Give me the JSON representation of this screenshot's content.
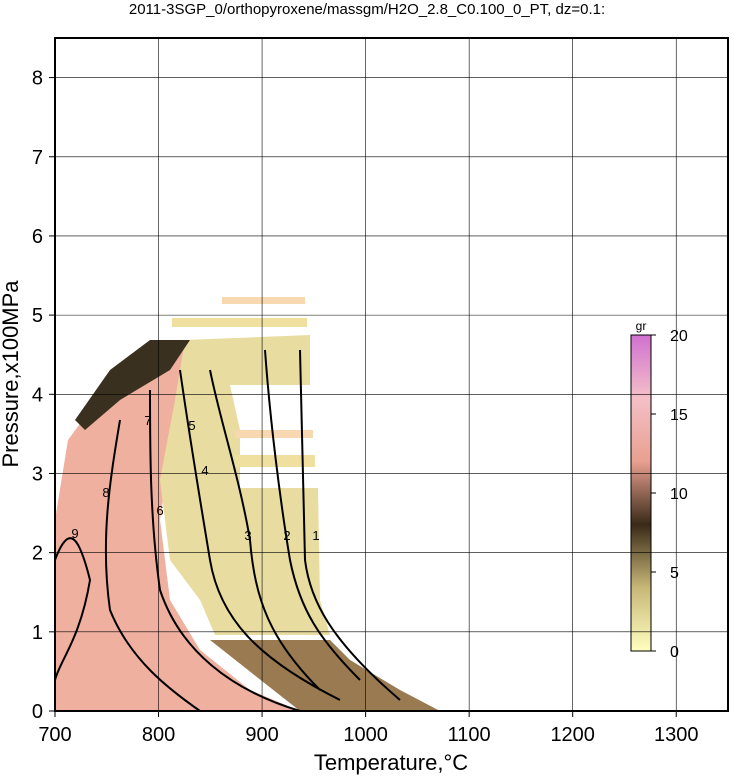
{
  "chart_data": {
    "type": "contour",
    "title": "2011-3SGP_0/orthopyroxene/massgm/H2O_2.8_C0.100_0_PT, dz=0.1:",
    "x_label": "Temperature,°C",
    "y_label": "Pressure,x100MPa",
    "xlim": [
      700,
      1350
    ],
    "xticks": [
      700,
      800,
      900,
      1000,
      1100,
      1200,
      1300
    ],
    "ylim": [
      0,
      8.5
    ],
    "yticks": [
      0,
      1,
      2,
      3,
      4,
      5,
      6,
      7,
      8
    ],
    "grid": true,
    "contour_levels": [
      1,
      2,
      3,
      4,
      5,
      6,
      7,
      8,
      9
    ],
    "colorbar": {
      "label": "gr",
      "lim": [
        0,
        20
      ],
      "ticks": [
        0,
        5,
        10,
        15,
        20
      ],
      "colors": [
        "#ffffc0",
        "#c8b878",
        "#3a2a18",
        "#e8a090",
        "#f4c0c8",
        "#d070d0"
      ]
    }
  }
}
